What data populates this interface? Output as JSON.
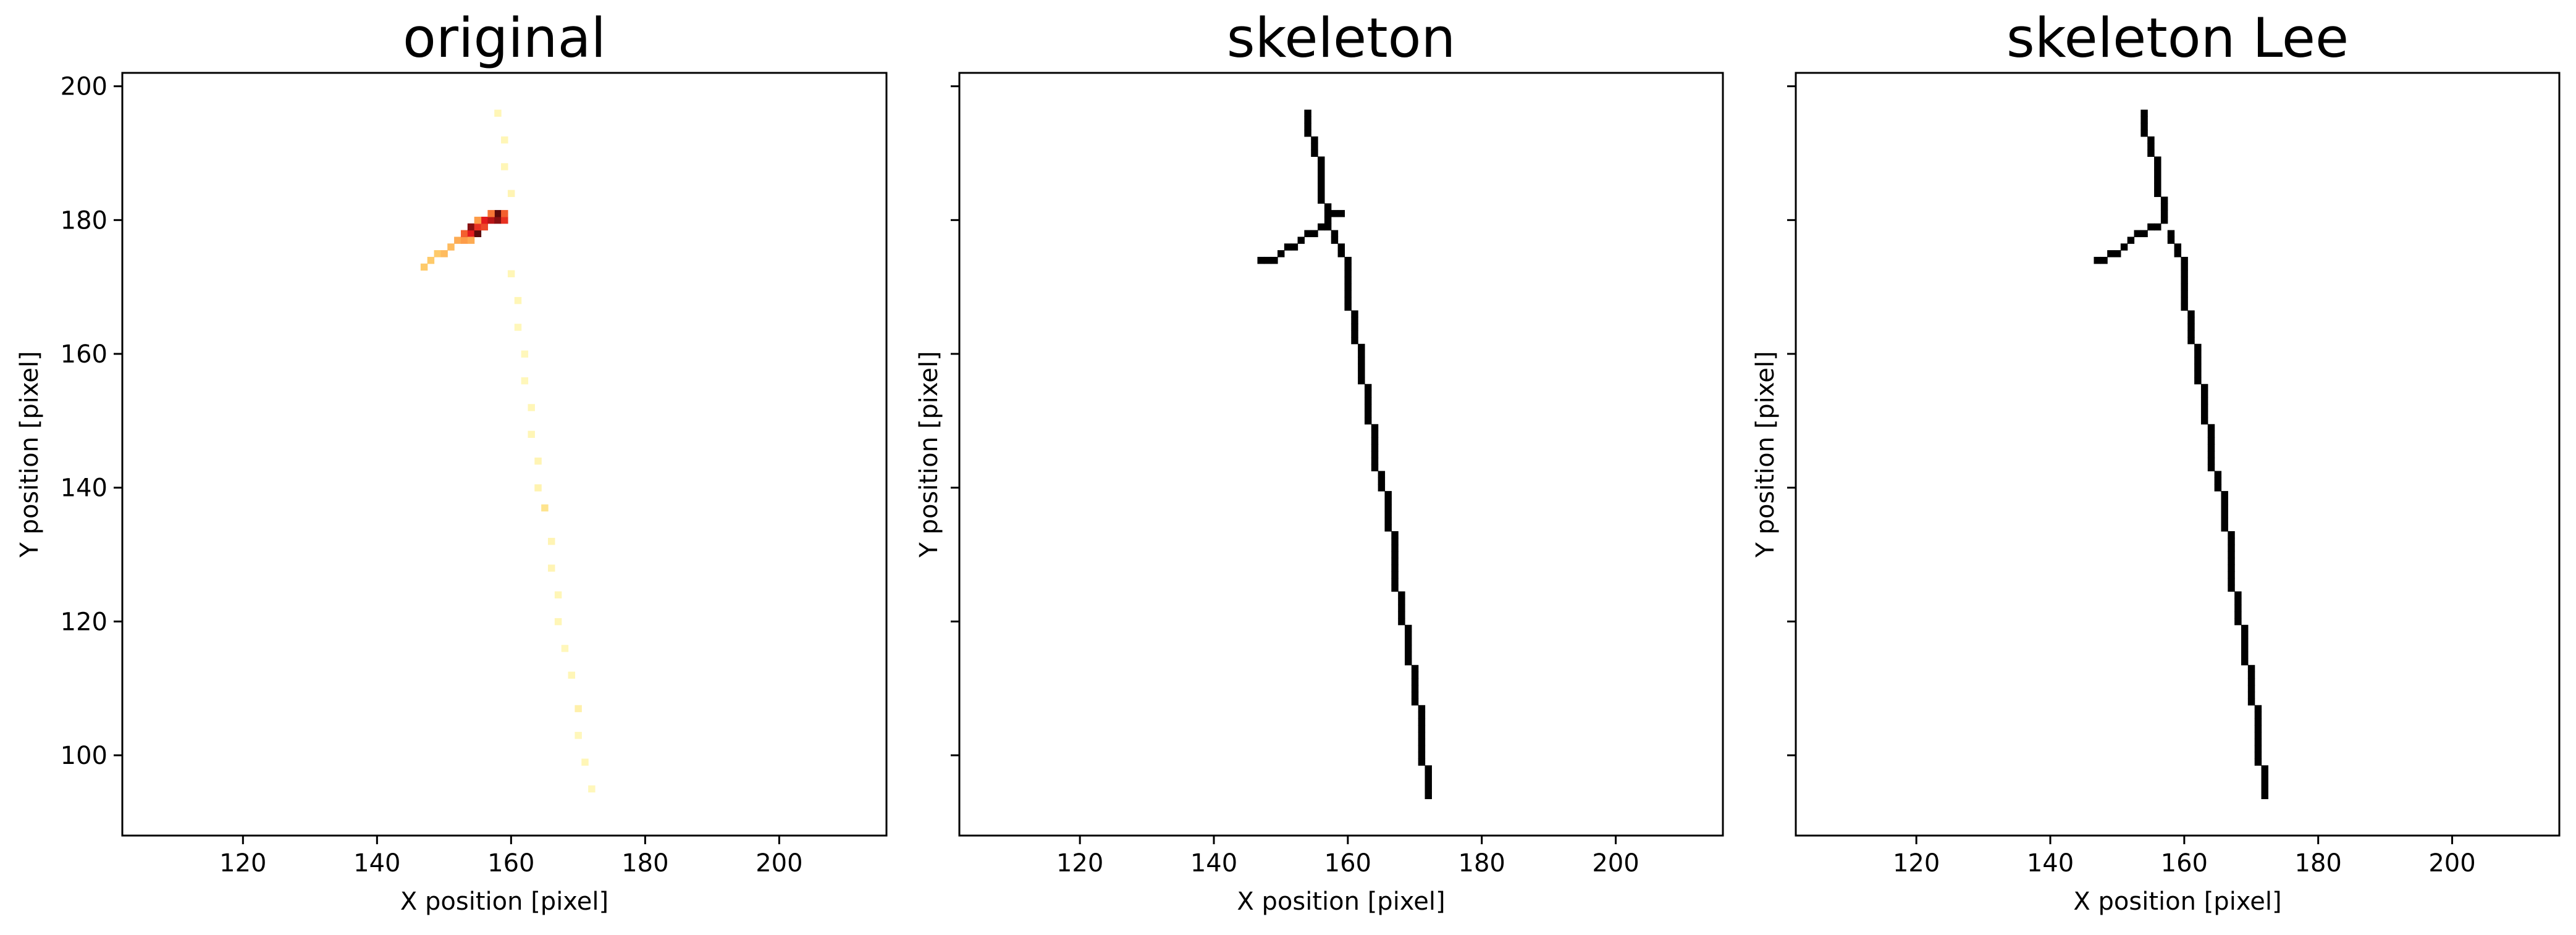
{
  "chart_data": [
    {
      "type": "heatmap",
      "title": "original",
      "xlabel": "X position [pixel]",
      "ylabel": "Y position [pixel]",
      "xlim": [
        102,
        216
      ],
      "ylim": [
        88,
        202
      ],
      "xticks": [
        120,
        140,
        160,
        180,
        200
      ],
      "yticks": [
        100,
        120,
        140,
        160,
        180,
        200
      ],
      "ytick_labels_visible": true,
      "colormap": "YlOrRd-like (light yellow to black)",
      "pixels": [
        [
          147,
          173,
          0.3
        ],
        [
          148,
          174,
          0.3
        ],
        [
          149,
          175,
          0.3
        ],
        [
          150,
          175,
          0.35
        ],
        [
          151,
          176,
          0.35
        ],
        [
          152,
          177,
          0.4
        ],
        [
          153,
          177,
          0.45
        ],
        [
          153,
          178,
          0.6
        ],
        [
          154,
          178,
          0.75
        ],
        [
          154,
          179,
          0.85
        ],
        [
          155,
          178,
          0.9
        ],
        [
          155,
          179,
          0.7
        ],
        [
          156,
          179,
          0.65
        ],
        [
          156,
          180,
          0.75
        ],
        [
          157,
          180,
          0.8
        ],
        [
          158,
          180,
          0.85
        ],
        [
          158,
          181,
          0.9
        ],
        [
          159,
          180,
          0.7
        ],
        [
          159,
          181,
          0.6
        ],
        [
          155,
          180,
          0.45
        ],
        [
          157,
          181,
          0.55
        ],
        [
          154,
          177,
          0.4
        ],
        [
          158,
          196,
          0.06
        ],
        [
          159,
          192,
          0.06
        ],
        [
          159,
          188,
          0.06
        ],
        [
          160,
          184,
          0.07
        ],
        [
          160,
          172,
          0.06
        ],
        [
          161,
          168,
          0.06
        ],
        [
          161,
          164,
          0.05
        ],
        [
          162,
          160,
          0.05
        ],
        [
          162,
          156,
          0.05
        ],
        [
          163,
          152,
          0.06
        ],
        [
          163,
          148,
          0.06
        ],
        [
          164,
          144,
          0.07
        ],
        [
          164,
          140,
          0.08
        ],
        [
          165,
          137,
          0.18
        ],
        [
          166,
          132,
          0.07
        ],
        [
          166,
          128,
          0.07
        ],
        [
          167,
          124,
          0.06
        ],
        [
          167,
          120,
          0.06
        ],
        [
          168,
          116,
          0.05
        ],
        [
          169,
          112,
          0.06
        ],
        [
          170,
          107,
          0.1
        ],
        [
          170,
          103,
          0.05
        ],
        [
          171,
          99,
          0.06
        ],
        [
          172,
          95,
          0.05
        ]
      ]
    },
    {
      "type": "heatmap",
      "title": "skeleton",
      "xlabel": "X position [pixel]",
      "ylabel": "Y position [pixel]",
      "xlim": [
        102,
        216
      ],
      "ylim": [
        88,
        202
      ],
      "xticks": [
        120,
        140,
        160,
        180,
        200
      ],
      "yticks": [
        100,
        120,
        140,
        160,
        180,
        200
      ],
      "ytick_labels_visible": false,
      "colormap": "binary",
      "pixels": [
        [
          147,
          174,
          1
        ],
        [
          148,
          174,
          1
        ],
        [
          149,
          174,
          1
        ],
        [
          150,
          175,
          1
        ],
        [
          151,
          176,
          1
        ],
        [
          152,
          176,
          1
        ],
        [
          153,
          177,
          1
        ],
        [
          154,
          178,
          1
        ],
        [
          155,
          178,
          1
        ],
        [
          156,
          179,
          1
        ],
        [
          157,
          179,
          1
        ],
        [
          154,
          193,
          1
        ],
        [
          154,
          194,
          1
        ],
        [
          154,
          195,
          1
        ],
        [
          154,
          196,
          1
        ],
        [
          155,
          190,
          1
        ],
        [
          155,
          191,
          1
        ],
        [
          155,
          192,
          1
        ],
        [
          156,
          183,
          1
        ],
        [
          156,
          184,
          1
        ],
        [
          156,
          185,
          1
        ],
        [
          156,
          186,
          1
        ],
        [
          156,
          187,
          1
        ],
        [
          156,
          188,
          1
        ],
        [
          156,
          189,
          1
        ],
        [
          157,
          180,
          1
        ],
        [
          157,
          181,
          1
        ],
        [
          157,
          182,
          1
        ],
        [
          158,
          181,
          1
        ],
        [
          159,
          181,
          1
        ],
        [
          158,
          177,
          1
        ],
        [
          158,
          178,
          1
        ],
        [
          159,
          175,
          1
        ],
        [
          159,
          176,
          1
        ],
        [
          160,
          167,
          1
        ],
        [
          160,
          168,
          1
        ],
        [
          160,
          169,
          1
        ],
        [
          160,
          170,
          1
        ],
        [
          160,
          171,
          1
        ],
        [
          160,
          172,
          1
        ],
        [
          160,
          173,
          1
        ],
        [
          160,
          174,
          1
        ],
        [
          161,
          162,
          1
        ],
        [
          161,
          163,
          1
        ],
        [
          161,
          164,
          1
        ],
        [
          161,
          165,
          1
        ],
        [
          161,
          166,
          1
        ],
        [
          162,
          156,
          1
        ],
        [
          162,
          157,
          1
        ],
        [
          162,
          158,
          1
        ],
        [
          162,
          159,
          1
        ],
        [
          162,
          160,
          1
        ],
        [
          162,
          161,
          1
        ],
        [
          163,
          150,
          1
        ],
        [
          163,
          151,
          1
        ],
        [
          163,
          152,
          1
        ],
        [
          163,
          153,
          1
        ],
        [
          163,
          154,
          1
        ],
        [
          163,
          155,
          1
        ],
        [
          164,
          143,
          1
        ],
        [
          164,
          144,
          1
        ],
        [
          164,
          145,
          1
        ],
        [
          164,
          146,
          1
        ],
        [
          164,
          147,
          1
        ],
        [
          164,
          148,
          1
        ],
        [
          164,
          149,
          1
        ],
        [
          165,
          140,
          1
        ],
        [
          165,
          141,
          1
        ],
        [
          165,
          142,
          1
        ],
        [
          166,
          134,
          1
        ],
        [
          166,
          135,
          1
        ],
        [
          166,
          136,
          1
        ],
        [
          166,
          137,
          1
        ],
        [
          166,
          138,
          1
        ],
        [
          166,
          139,
          1
        ],
        [
          167,
          125,
          1
        ],
        [
          167,
          126,
          1
        ],
        [
          167,
          127,
          1
        ],
        [
          167,
          128,
          1
        ],
        [
          167,
          129,
          1
        ],
        [
          167,
          130,
          1
        ],
        [
          167,
          131,
          1
        ],
        [
          167,
          132,
          1
        ],
        [
          167,
          133,
          1
        ],
        [
          168,
          120,
          1
        ],
        [
          168,
          121,
          1
        ],
        [
          168,
          122,
          1
        ],
        [
          168,
          123,
          1
        ],
        [
          168,
          124,
          1
        ],
        [
          169,
          114,
          1
        ],
        [
          169,
          115,
          1
        ],
        [
          169,
          116,
          1
        ],
        [
          169,
          117,
          1
        ],
        [
          169,
          118,
          1
        ],
        [
          169,
          119,
          1
        ],
        [
          170,
          108,
          1
        ],
        [
          170,
          109,
          1
        ],
        [
          170,
          110,
          1
        ],
        [
          170,
          111,
          1
        ],
        [
          170,
          112,
          1
        ],
        [
          170,
          113,
          1
        ],
        [
          171,
          99,
          1
        ],
        [
          171,
          100,
          1
        ],
        [
          171,
          101,
          1
        ],
        [
          171,
          102,
          1
        ],
        [
          171,
          103,
          1
        ],
        [
          171,
          104,
          1
        ],
        [
          171,
          105,
          1
        ],
        [
          171,
          106,
          1
        ],
        [
          171,
          107,
          1
        ],
        [
          172,
          94,
          1
        ],
        [
          172,
          95,
          1
        ],
        [
          172,
          96,
          1
        ],
        [
          172,
          97,
          1
        ],
        [
          172,
          98,
          1
        ]
      ]
    },
    {
      "type": "heatmap",
      "title": "skeleton Lee",
      "xlabel": "X position [pixel]",
      "ylabel": "Y position [pixel]",
      "xlim": [
        102,
        216
      ],
      "ylim": [
        88,
        202
      ],
      "xticks": [
        120,
        140,
        160,
        180,
        200
      ],
      "yticks": [
        100,
        120,
        140,
        160,
        180,
        200
      ],
      "ytick_labels_visible": false,
      "colormap": "binary",
      "pixels": [
        [
          147,
          174,
          1
        ],
        [
          148,
          174,
          1
        ],
        [
          149,
          175,
          1
        ],
        [
          150,
          175,
          1
        ],
        [
          151,
          176,
          1
        ],
        [
          152,
          177,
          1
        ],
        [
          153,
          178,
          1
        ],
        [
          154,
          178,
          1
        ],
        [
          155,
          179,
          1
        ],
        [
          156,
          179,
          1
        ],
        [
          154,
          193,
          1
        ],
        [
          154,
          194,
          1
        ],
        [
          154,
          195,
          1
        ],
        [
          154,
          196,
          1
        ],
        [
          155,
          190,
          1
        ],
        [
          155,
          191,
          1
        ],
        [
          155,
          192,
          1
        ],
        [
          156,
          184,
          1
        ],
        [
          156,
          185,
          1
        ],
        [
          156,
          186,
          1
        ],
        [
          156,
          187,
          1
        ],
        [
          156,
          188,
          1
        ],
        [
          156,
          189,
          1
        ],
        [
          157,
          180,
          1
        ],
        [
          157,
          181,
          1
        ],
        [
          157,
          182,
          1
        ],
        [
          157,
          183,
          1
        ],
        [
          158,
          177,
          1
        ],
        [
          158,
          178,
          1
        ],
        [
          159,
          175,
          1
        ],
        [
          159,
          176,
          1
        ],
        [
          160,
          167,
          1
        ],
        [
          160,
          168,
          1
        ],
        [
          160,
          169,
          1
        ],
        [
          160,
          170,
          1
        ],
        [
          160,
          171,
          1
        ],
        [
          160,
          172,
          1
        ],
        [
          160,
          173,
          1
        ],
        [
          160,
          174,
          1
        ],
        [
          161,
          162,
          1
        ],
        [
          161,
          163,
          1
        ],
        [
          161,
          164,
          1
        ],
        [
          161,
          165,
          1
        ],
        [
          161,
          166,
          1
        ],
        [
          162,
          156,
          1
        ],
        [
          162,
          157,
          1
        ],
        [
          162,
          158,
          1
        ],
        [
          162,
          159,
          1
        ],
        [
          162,
          160,
          1
        ],
        [
          162,
          161,
          1
        ],
        [
          163,
          150,
          1
        ],
        [
          163,
          151,
          1
        ],
        [
          163,
          152,
          1
        ],
        [
          163,
          153,
          1
        ],
        [
          163,
          154,
          1
        ],
        [
          163,
          155,
          1
        ],
        [
          164,
          143,
          1
        ],
        [
          164,
          144,
          1
        ],
        [
          164,
          145,
          1
        ],
        [
          164,
          146,
          1
        ],
        [
          164,
          147,
          1
        ],
        [
          164,
          148,
          1
        ],
        [
          164,
          149,
          1
        ],
        [
          165,
          140,
          1
        ],
        [
          165,
          141,
          1
        ],
        [
          165,
          142,
          1
        ],
        [
          166,
          134,
          1
        ],
        [
          166,
          135,
          1
        ],
        [
          166,
          136,
          1
        ],
        [
          166,
          137,
          1
        ],
        [
          166,
          138,
          1
        ],
        [
          166,
          139,
          1
        ],
        [
          167,
          125,
          1
        ],
        [
          167,
          126,
          1
        ],
        [
          167,
          127,
          1
        ],
        [
          167,
          128,
          1
        ],
        [
          167,
          129,
          1
        ],
        [
          167,
          130,
          1
        ],
        [
          167,
          131,
          1
        ],
        [
          167,
          132,
          1
        ],
        [
          167,
          133,
          1
        ],
        [
          168,
          120,
          1
        ],
        [
          168,
          121,
          1
        ],
        [
          168,
          122,
          1
        ],
        [
          168,
          123,
          1
        ],
        [
          168,
          124,
          1
        ],
        [
          169,
          114,
          1
        ],
        [
          169,
          115,
          1
        ],
        [
          169,
          116,
          1
        ],
        [
          169,
          117,
          1
        ],
        [
          169,
          118,
          1
        ],
        [
          169,
          119,
          1
        ],
        [
          170,
          108,
          1
        ],
        [
          170,
          109,
          1
        ],
        [
          170,
          110,
          1
        ],
        [
          170,
          111,
          1
        ],
        [
          170,
          112,
          1
        ],
        [
          170,
          113,
          1
        ],
        [
          171,
          99,
          1
        ],
        [
          171,
          100,
          1
        ],
        [
          171,
          101,
          1
        ],
        [
          171,
          102,
          1
        ],
        [
          171,
          103,
          1
        ],
        [
          171,
          104,
          1
        ],
        [
          171,
          105,
          1
        ],
        [
          171,
          106,
          1
        ],
        [
          171,
          107,
          1
        ],
        [
          172,
          94,
          1
        ],
        [
          172,
          95,
          1
        ],
        [
          172,
          96,
          1
        ],
        [
          172,
          97,
          1
        ],
        [
          172,
          98,
          1
        ]
      ]
    }
  ]
}
